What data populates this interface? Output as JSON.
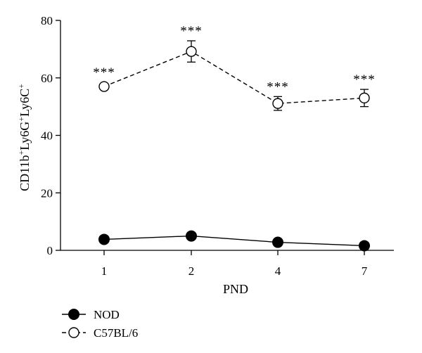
{
  "chart_data": {
    "type": "line",
    "xlabel": "PND",
    "ylabel_parts": [
      {
        "text": "CD11b",
        "sup": false
      },
      {
        "text": "+",
        "sup": true
      },
      {
        "text": "Ly6G",
        "sup": false
      },
      {
        "text": "+",
        "sup": true
      },
      {
        "text": "Ly6C",
        "sup": false
      },
      {
        "text": "+",
        "sup": true
      }
    ],
    "categories": [
      "1",
      "2",
      "4",
      "7"
    ],
    "ylim": [
      0,
      80
    ],
    "yticks": [
      "0",
      "20",
      "40",
      "60",
      "80"
    ],
    "grid": false,
    "legend_position": "bottom-left",
    "series": [
      {
        "name": "NOD",
        "style": "solid",
        "marker": "filled-circle",
        "color": "#000000",
        "values": [
          3.8,
          5.0,
          2.8,
          1.6
        ],
        "errors": [
          0,
          0,
          0,
          0
        ],
        "annotations": [
          "",
          "",
          "",
          ""
        ]
      },
      {
        "name": "C57BL/6",
        "style": "dashed",
        "marker": "open-circle",
        "color": "#000000",
        "values": [
          57.0,
          69.2,
          51.1,
          53.0
        ],
        "errors": [
          0,
          3.7,
          2.4,
          3.0
        ],
        "annotations": [
          "***",
          "***",
          "***",
          "***"
        ]
      }
    ]
  }
}
